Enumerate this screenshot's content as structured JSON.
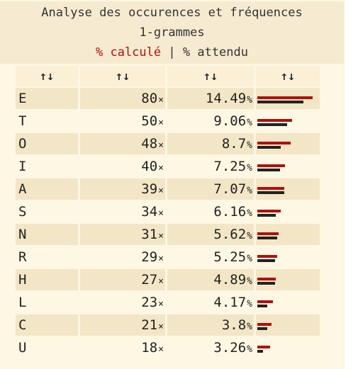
{
  "header": {
    "title": "Analyse des occurences et fréquences",
    "subtitle": "1-grammes",
    "legend": {
      "calc": "% calculé",
      "sep": "|",
      "att": "% attendu"
    },
    "colors": {
      "calc": "#b01010",
      "att": "#222222"
    }
  },
  "table": {
    "sort_icon": "↑↓",
    "sort_icon_name": "sort-arrows-icon",
    "count_unit": "×",
    "pct_unit": "%",
    "bar_max_pct": 16,
    "rows": [
      {
        "letter": "E",
        "count": "80",
        "pct": "14.49",
        "calc": 14.49,
        "expected": 12.1
      },
      {
        "letter": "T",
        "count": "50",
        "pct": "9.06",
        "calc": 9.06,
        "expected": 7.9
      },
      {
        "letter": "O",
        "count": "48",
        "pct": "8.7",
        "calc": 8.7,
        "expected": 6.1
      },
      {
        "letter": "I",
        "count": "40",
        "pct": "7.25",
        "calc": 7.25,
        "expected": 5.9
      },
      {
        "letter": "A",
        "count": "39",
        "pct": "7.07",
        "calc": 7.07,
        "expected": 7.1
      },
      {
        "letter": "S",
        "count": "34",
        "pct": "6.16",
        "calc": 6.16,
        "expected": 4.8
      },
      {
        "letter": "N",
        "count": "31",
        "pct": "5.62",
        "calc": 5.62,
        "expected": 5.2
      },
      {
        "letter": "R",
        "count": "29",
        "pct": "5.25",
        "calc": 5.25,
        "expected": 4.6
      },
      {
        "letter": "H",
        "count": "27",
        "pct": "4.89",
        "calc": 4.89,
        "expected": 4.6
      },
      {
        "letter": "L",
        "count": "23",
        "pct": "4.17",
        "calc": 4.17,
        "expected": 2.6
      },
      {
        "letter": "C",
        "count": "21",
        "pct": "3.8",
        "calc": 3.8,
        "expected": 2.6
      },
      {
        "letter": "U",
        "count": "18",
        "pct": "3.26",
        "calc": 3.26,
        "expected": 1.4
      }
    ]
  }
}
